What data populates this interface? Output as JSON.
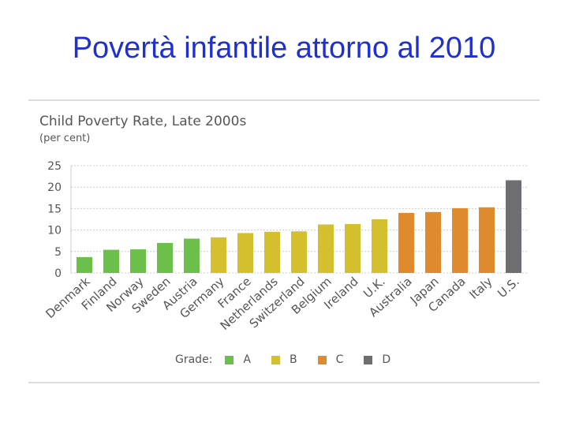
{
  "slide": {
    "title": "Povertà infantile attorno al 2010"
  },
  "chart_data": {
    "type": "bar",
    "title": "Child Poverty Rate, Late 2000s",
    "ylabel": "(per cent)",
    "xlabel": "",
    "ylim": [
      0,
      25
    ],
    "yticks": [
      "0",
      "5",
      "10",
      "15",
      "20",
      "25"
    ],
    "categories": [
      "Denmark",
      "Finland",
      "Norway",
      "Sweden",
      "Austria",
      "Germany",
      "France",
      "Netherlands",
      "Switzerland",
      "Belgium",
      "Ireland",
      "U.K.",
      "Australia",
      "Japan",
      "Canada",
      "Italy",
      "U.S."
    ],
    "values": [
      3.7,
      5.4,
      5.5,
      7.0,
      8.0,
      8.3,
      9.3,
      9.6,
      9.7,
      11.3,
      11.4,
      12.5,
      14.0,
      14.2,
      15.1,
      15.3,
      21.6
    ],
    "grades": [
      "A",
      "A",
      "A",
      "A",
      "A",
      "B",
      "B",
      "B",
      "B",
      "B",
      "B",
      "B",
      "C",
      "C",
      "C",
      "C",
      "D"
    ],
    "legend_title": "Grade:",
    "legend": [
      {
        "label": "A",
        "color": "#6cbf4a"
      },
      {
        "label": "B",
        "color": "#d4c02e"
      },
      {
        "label": "C",
        "color": "#e08a2e"
      },
      {
        "label": "D",
        "color": "#6d6d72"
      }
    ],
    "legend_placement": "bottom",
    "grid": true,
    "gridline_color": "#cccccc"
  }
}
